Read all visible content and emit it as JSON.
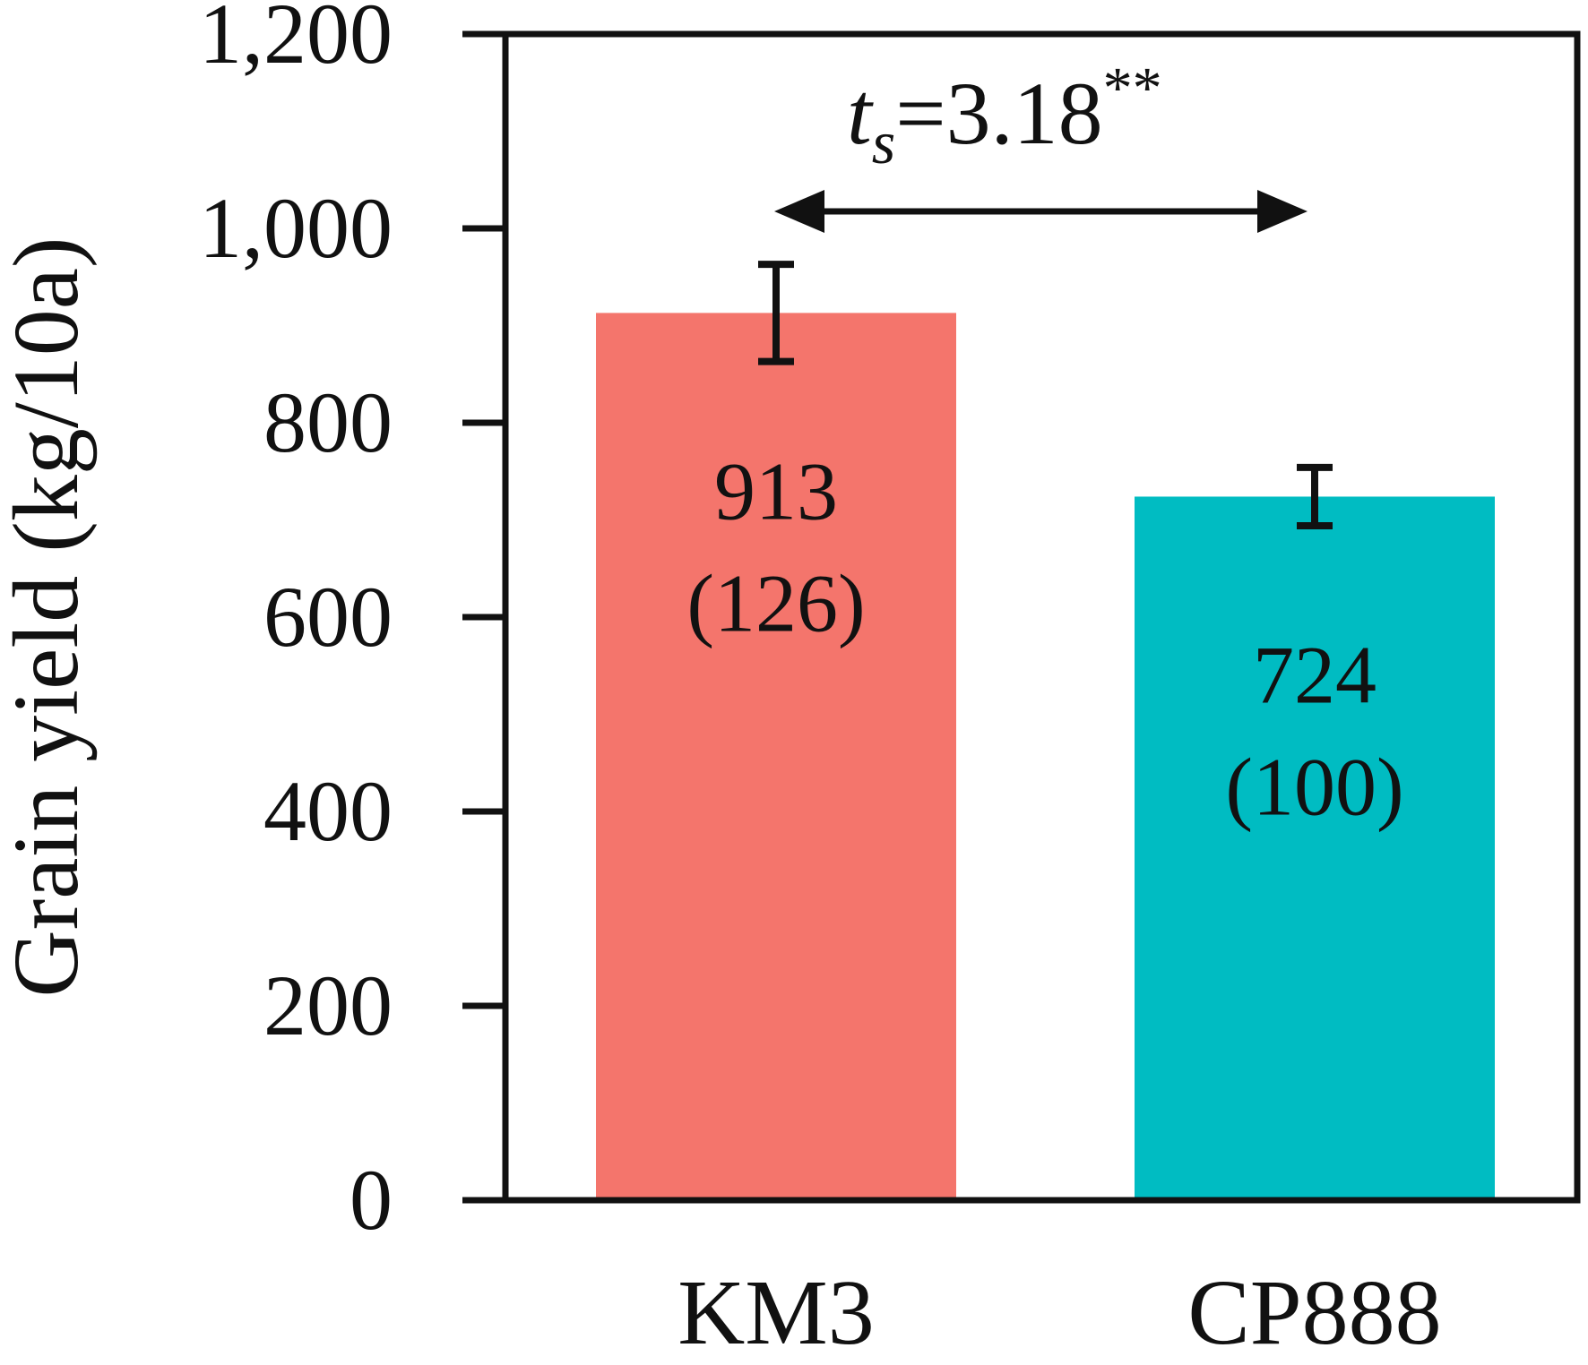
{
  "chart_data": {
    "type": "bar",
    "ylabel": "Grain yield (kg/10a)",
    "ylim": [
      0,
      1200
    ],
    "yticks": [
      0,
      200,
      400,
      600,
      800,
      1000,
      1200
    ],
    "ytick_labels": [
      "0",
      "200",
      "400",
      "600",
      "800",
      "1,000",
      "1,200"
    ],
    "grid": false,
    "categories": [
      "KM3",
      "CP888"
    ],
    "values": [
      913,
      724
    ],
    "error": [
      50,
      30
    ],
    "colors": [
      "#f4756c",
      "#00bcc2"
    ],
    "value_labels": [
      "913",
      "724"
    ],
    "relative_labels": [
      "(126)",
      "(100)"
    ],
    "comparison": {
      "symbol": "t",
      "subscript": "s",
      "text": "=3.18",
      "significance": "**"
    }
  }
}
